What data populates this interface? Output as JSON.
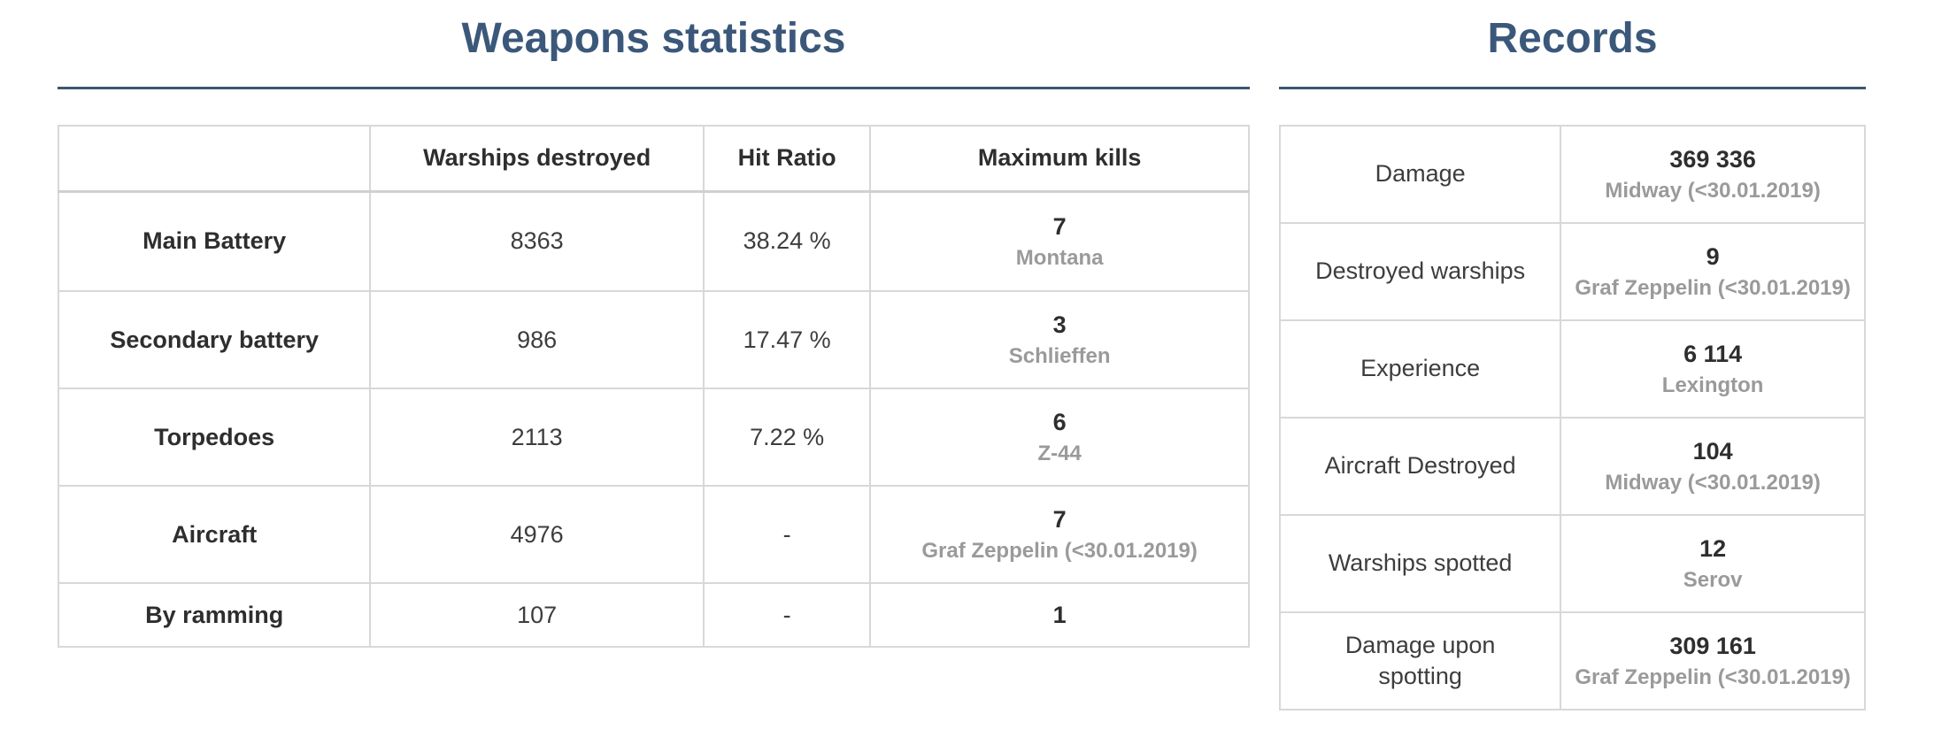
{
  "colors": {
    "accent_blue": "#3b587a",
    "rule_blue": "#3d5570",
    "border_gray": "#d8d8d8",
    "text_dark": "#2e2e2e",
    "ship_gray": "#9a9a9a"
  },
  "weapons": {
    "title": "Weapons statistics",
    "columns": [
      "",
      "Warships destroyed",
      "Hit Ratio",
      "Maximum kills"
    ],
    "rows": [
      {
        "label": "Main Battery",
        "destroyed": "8363",
        "hit_ratio": "38.24 %",
        "max_kills": "7",
        "max_kills_ship": "Montana"
      },
      {
        "label": "Secondary battery",
        "destroyed": "986",
        "hit_ratio": "17.47 %",
        "max_kills": "3",
        "max_kills_ship": "Schlieffen"
      },
      {
        "label": "Torpedoes",
        "destroyed": "2113",
        "hit_ratio": "7.22 %",
        "max_kills": "6",
        "max_kills_ship": "Z-44"
      },
      {
        "label": "Aircraft",
        "destroyed": "4976",
        "hit_ratio": "-",
        "max_kills": "7",
        "max_kills_ship": "Graf Zeppelin (<30.01.2019)"
      },
      {
        "label": "By ramming",
        "destroyed": "107",
        "hit_ratio": "-",
        "max_kills": "1",
        "max_kills_ship": ""
      }
    ]
  },
  "records": {
    "title": "Records",
    "rows": [
      {
        "label": "Damage",
        "value": "369 336",
        "ship": "Midway (<30.01.2019)"
      },
      {
        "label": "Destroyed warships",
        "value": "9",
        "ship": "Graf Zeppelin (<30.01.2019)"
      },
      {
        "label": "Experience",
        "value": "6 114",
        "ship": "Lexington"
      },
      {
        "label": "Aircraft Destroyed",
        "value": "104",
        "ship": "Midway (<30.01.2019)"
      },
      {
        "label": "Warships spotted",
        "value": "12",
        "ship": "Serov"
      },
      {
        "label": "Damage upon spotting",
        "value": "309 161",
        "ship": "Graf Zeppelin (<30.01.2019)"
      }
    ]
  }
}
